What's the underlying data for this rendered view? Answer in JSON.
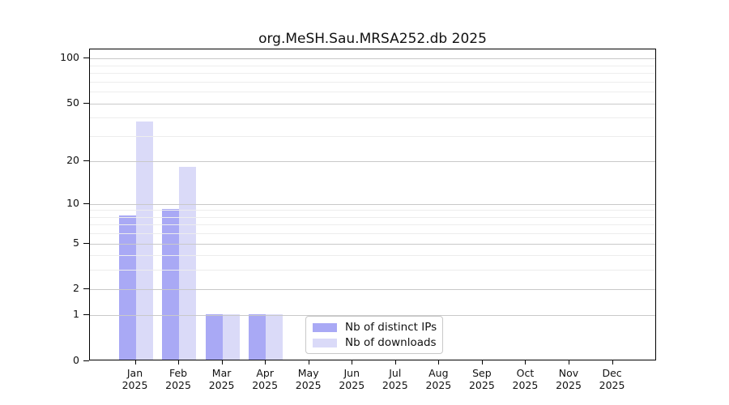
{
  "chart_data": {
    "type": "bar",
    "title": "org.MeSH.Sau.MRSA252.db 2025",
    "year": "2025",
    "categories": [
      "Jan",
      "Feb",
      "Mar",
      "Apr",
      "May",
      "Jun",
      "Jul",
      "Aug",
      "Sep",
      "Oct",
      "Nov",
      "Dec"
    ],
    "series": [
      {
        "name": "Nb of distinct IPs",
        "color": "#a9a9f5",
        "values": [
          8,
          9,
          1,
          1,
          0,
          0,
          0,
          0,
          0,
          0,
          0,
          0
        ]
      },
      {
        "name": "Nb of downloads",
        "color": "#dadaf8",
        "values": [
          37,
          18,
          1,
          1,
          0,
          0,
          0,
          0,
          0,
          0,
          0,
          0
        ]
      }
    ],
    "xlabel": "",
    "ylabel": "",
    "scale": "log1p",
    "y_ticks": [
      0,
      1,
      2,
      5,
      10,
      20,
      50,
      100
    ],
    "y_minor_gridlines": [
      3,
      4,
      6,
      7,
      8,
      9,
      30,
      40,
      60,
      70,
      80,
      90
    ],
    "ylim": [
      0,
      115
    ],
    "grid": true,
    "legend_position": "bottom-center"
  }
}
